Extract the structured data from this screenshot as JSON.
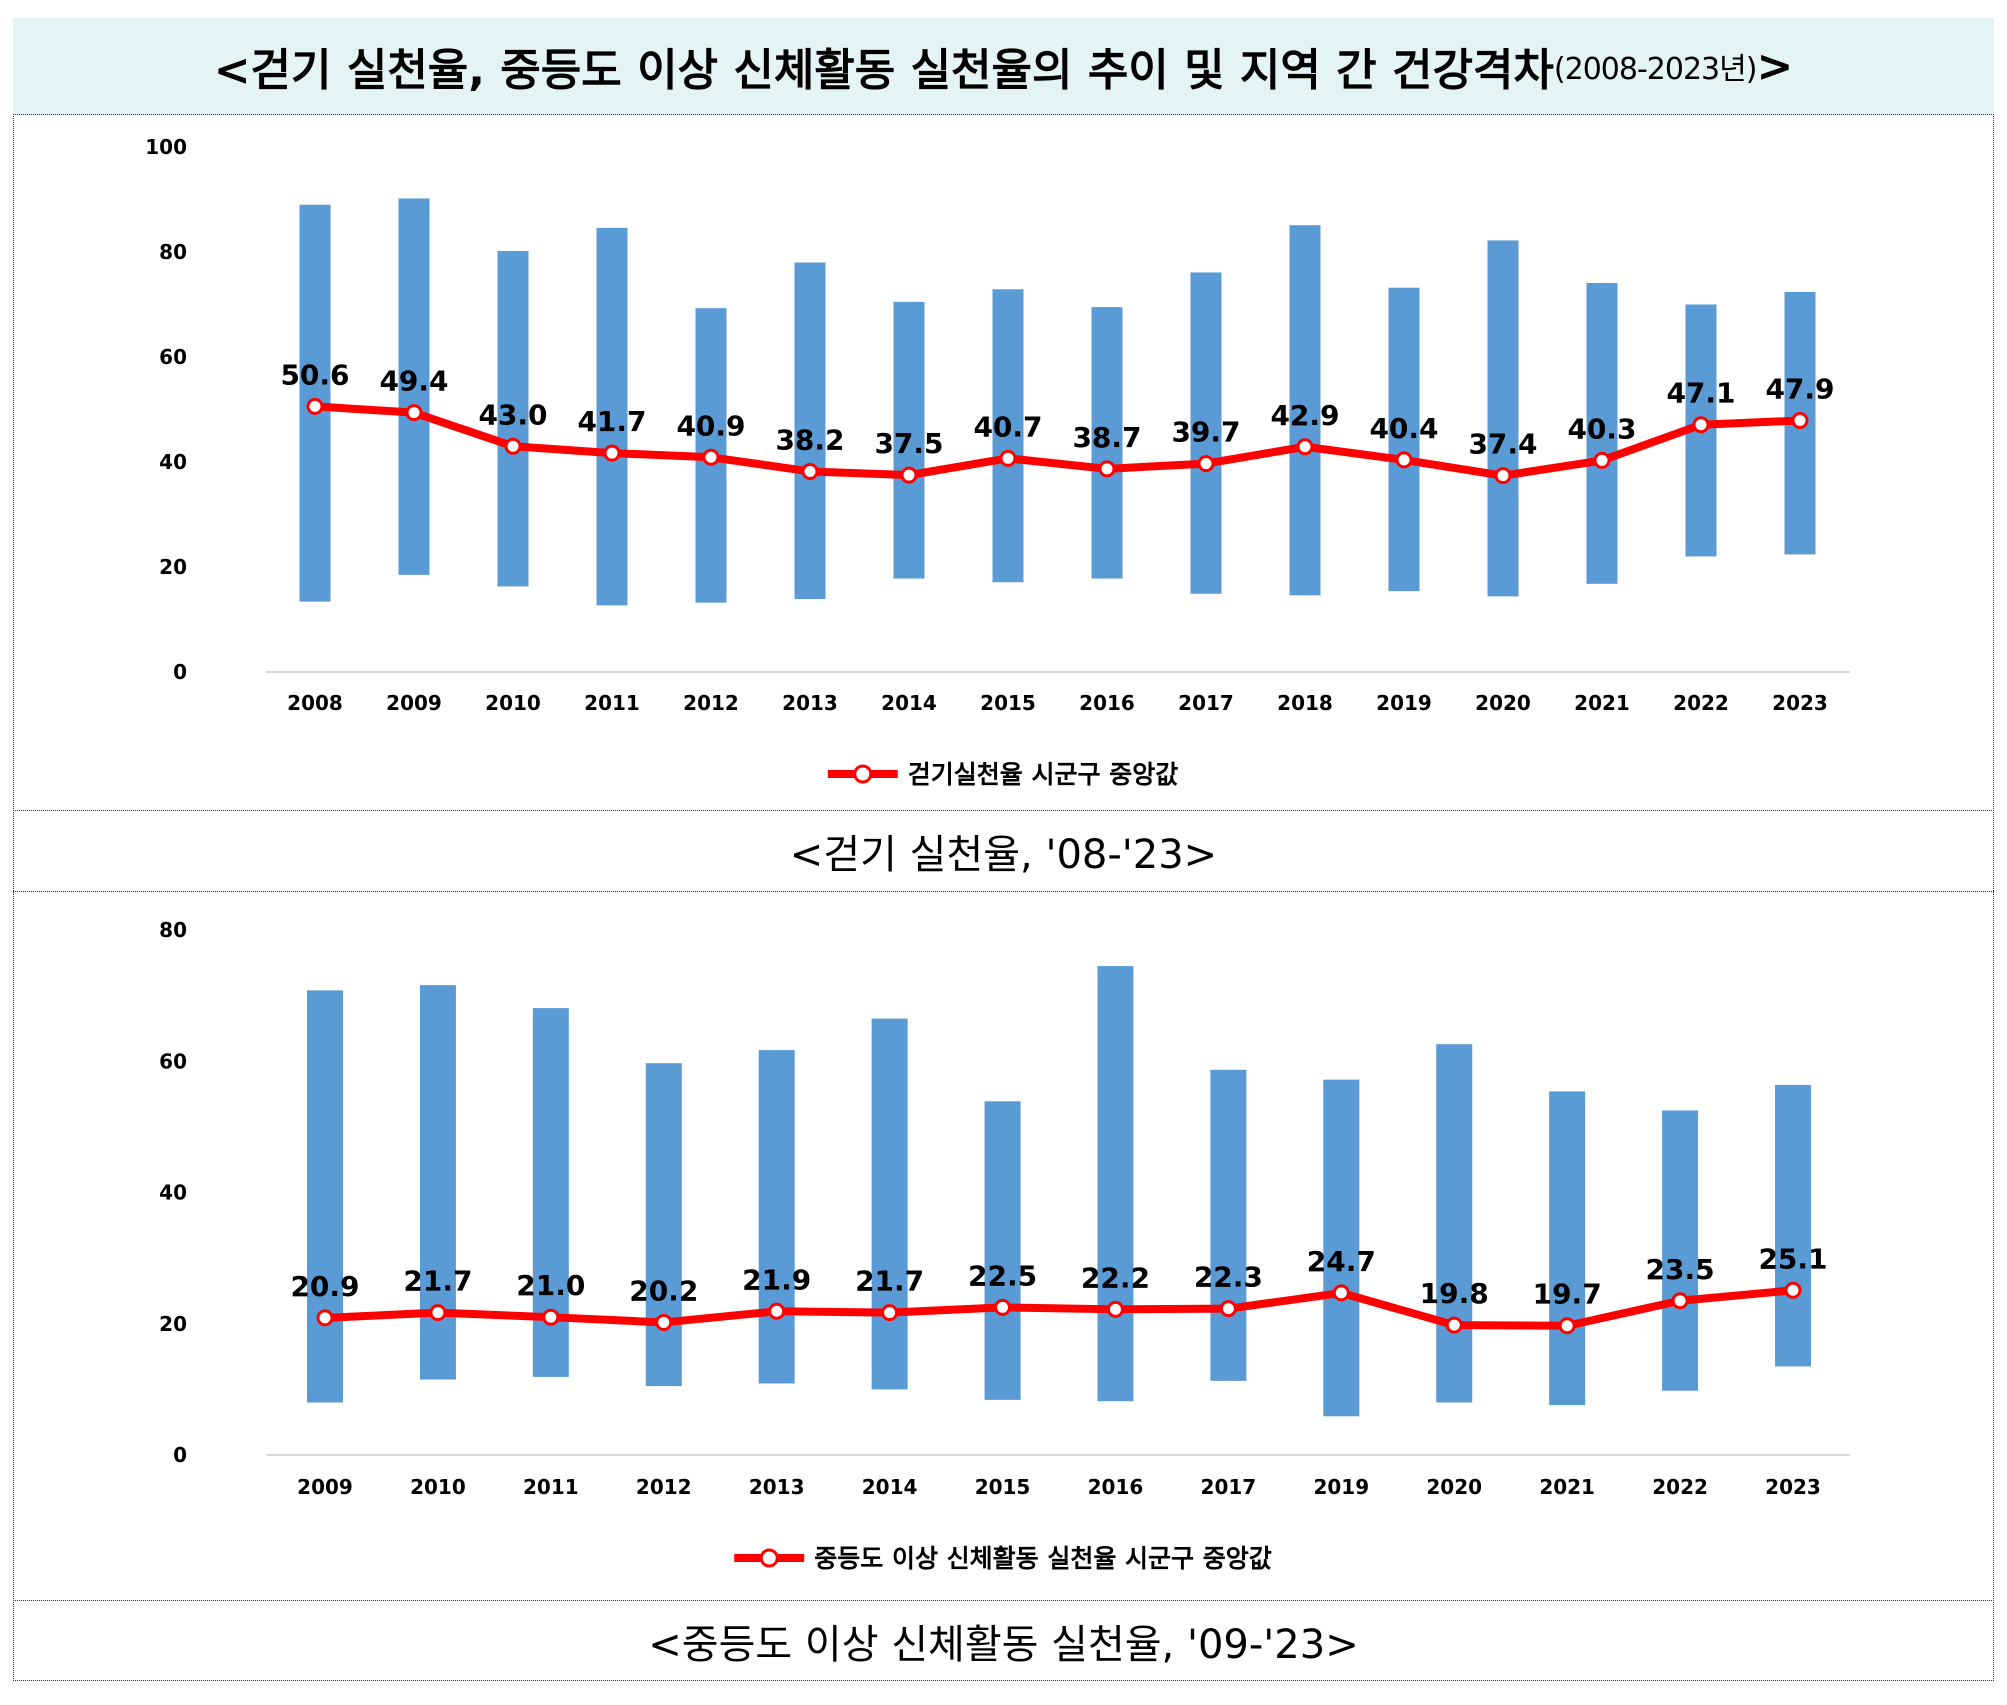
{
  "title": {
    "main": "<걷기 실천율, 중등도 이상 신체활동 실천율의 추이 및 지역 간 건강격차",
    "sub": "(2008-2023년)",
    "end": ">"
  },
  "colors": {
    "bar": "#5b9bd5",
    "line": "#ff0000",
    "title_bg": "#e4f3f3"
  },
  "chart_data": [
    {
      "type": "bar+line",
      "caption": "<걷기 실천율, '08-'23>",
      "ylim": [
        0,
        100
      ],
      "yticks": [
        0,
        20,
        40,
        60,
        80,
        100
      ],
      "categories": [
        "2008",
        "2009",
        "2010",
        "2011",
        "2012",
        "2013",
        "2014",
        "2015",
        "2016",
        "2017",
        "2018",
        "2019",
        "2020",
        "2021",
        "2022",
        "2023"
      ],
      "range_bars": {
        "min": [
          13.4,
          18.5,
          16.3,
          12.7,
          13.2,
          13.9,
          17.8,
          17.1,
          17.8,
          14.9,
          14.6,
          15.4,
          14.4,
          16.8,
          22.0,
          22.4
        ],
        "max": [
          89.0,
          90.2,
          80.2,
          84.6,
          69.3,
          78.0,
          70.5,
          72.9,
          69.5,
          76.1,
          85.1,
          73.2,
          82.2,
          74.1,
          70.0,
          72.4
        ]
      },
      "series": [
        {
          "name": "걷기실천율 시군구 중앙값",
          "values": [
            50.6,
            49.4,
            43.0,
            41.7,
            40.9,
            38.2,
            37.5,
            40.7,
            38.7,
            39.7,
            42.9,
            40.4,
            37.4,
            40.3,
            47.1,
            47.9
          ]
        }
      ],
      "legend": "bottom"
    },
    {
      "type": "bar+line",
      "caption": "<중등도 이상 신체활동 실천율, '09-'23>",
      "ylim": [
        0,
        80
      ],
      "yticks": [
        0,
        20,
        40,
        60,
        80
      ],
      "categories": [
        "2009",
        "2010",
        "2011",
        "2012",
        "2013",
        "2014",
        "2015",
        "2016",
        "2017",
        "2019",
        "2020",
        "2021",
        "2022",
        "2023"
      ],
      "range_bars": {
        "min": [
          8.0,
          11.5,
          11.9,
          10.5,
          10.9,
          10.0,
          8.4,
          8.2,
          11.3,
          5.9,
          8.0,
          7.6,
          9.8,
          13.5
        ],
        "max": [
          70.8,
          71.6,
          68.1,
          59.7,
          61.7,
          66.5,
          53.9,
          74.5,
          58.7,
          57.2,
          62.6,
          55.4,
          52.5,
          56.4
        ]
      },
      "series": [
        {
          "name": "중등도 이상 신체활동 실천율 시군구 중앙값",
          "values": [
            20.9,
            21.7,
            21.0,
            20.2,
            21.9,
            21.7,
            22.5,
            22.2,
            22.3,
            24.7,
            19.8,
            19.7,
            23.5,
            25.1
          ]
        }
      ],
      "legend": "bottom"
    }
  ]
}
